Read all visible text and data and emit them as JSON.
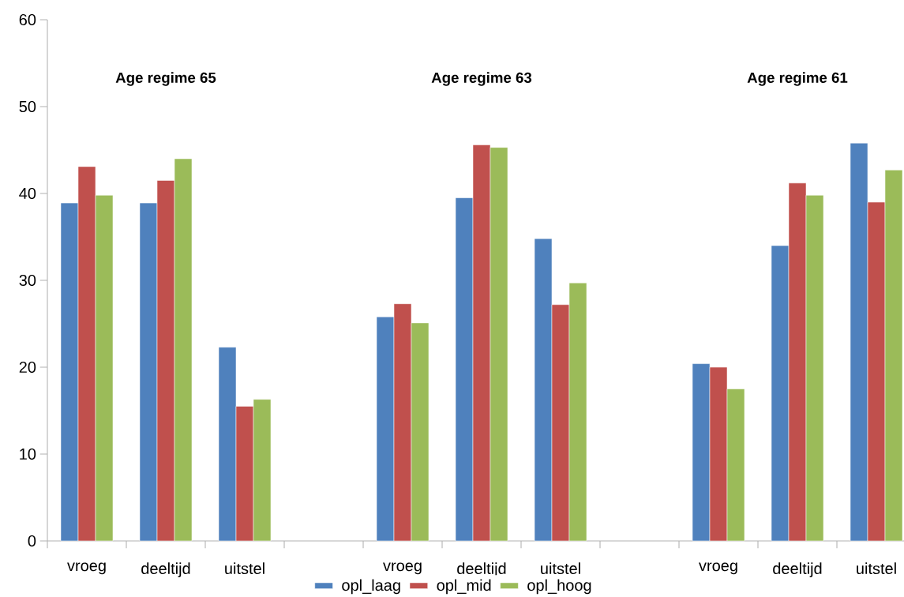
{
  "chart_data": {
    "type": "bar",
    "categories": [
      "vroeg",
      "deeltijd",
      "uitstel",
      null,
      "vroeg",
      "deeltijd",
      "uitstel",
      null,
      "vroeg",
      "deeltijd",
      "uitstel"
    ],
    "series": [
      {
        "name": "opl_laag",
        "color": "#4f81bd",
        "values": [
          38.9,
          38.9,
          22.3,
          null,
          25.8,
          39.5,
          34.8,
          null,
          20.4,
          34.0,
          45.8
        ]
      },
      {
        "name": "opl_mid",
        "color": "#c0504d",
        "values": [
          43.1,
          41.5,
          15.5,
          null,
          27.3,
          45.6,
          27.2,
          null,
          20.0,
          41.2,
          39.0
        ]
      },
      {
        "name": "opl_hoog",
        "color": "#9bbb59",
        "values": [
          39.8,
          44.0,
          16.3,
          null,
          25.1,
          45.3,
          29.7,
          null,
          17.5,
          39.8,
          42.7
        ]
      }
    ],
    "annotations": [
      "Age regime 65",
      "Age regime 63",
      "Age regime 61"
    ],
    "ylim": [
      0,
      60
    ],
    "yticks": [
      0,
      10,
      20,
      30,
      40,
      50,
      60
    ],
    "grid": false,
    "legend": "bottom"
  }
}
